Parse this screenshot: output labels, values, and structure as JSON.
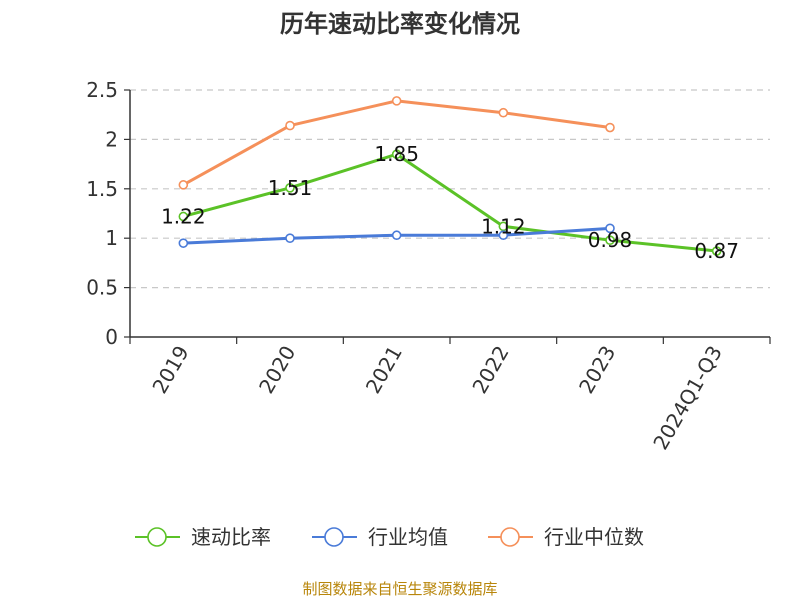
{
  "chart_data": {
    "type": "line",
    "title": "历年速动比率变化情况",
    "categories": [
      "2019",
      "2020",
      "2021",
      "2022",
      "2023",
      "2024Q1-Q3"
    ],
    "ylim": [
      0,
      2.5
    ],
    "y_ticks": [
      "0",
      "0.5",
      "1",
      "1.5",
      "2",
      "2.5"
    ],
    "grid": true,
    "legend_position": "bottom",
    "series": [
      {
        "name": "速动比率",
        "color": "#5bc227",
        "values": [
          1.22,
          1.51,
          1.85,
          1.12,
          0.98,
          0.87
        ],
        "labels": [
          "1.22",
          "1.51",
          "1.85",
          "1.12",
          "0.98",
          "0.87"
        ]
      },
      {
        "name": "行业均值",
        "color": "#4a7bd8",
        "values": [
          0.95,
          1.0,
          1.03,
          1.03,
          1.1,
          null
        ]
      },
      {
        "name": "行业中位数",
        "color": "#f5905a",
        "values": [
          1.54,
          2.14,
          2.39,
          2.27,
          2.12,
          null
        ]
      }
    ]
  },
  "footer": {
    "source": "制图数据来自恒生聚源数据库"
  }
}
